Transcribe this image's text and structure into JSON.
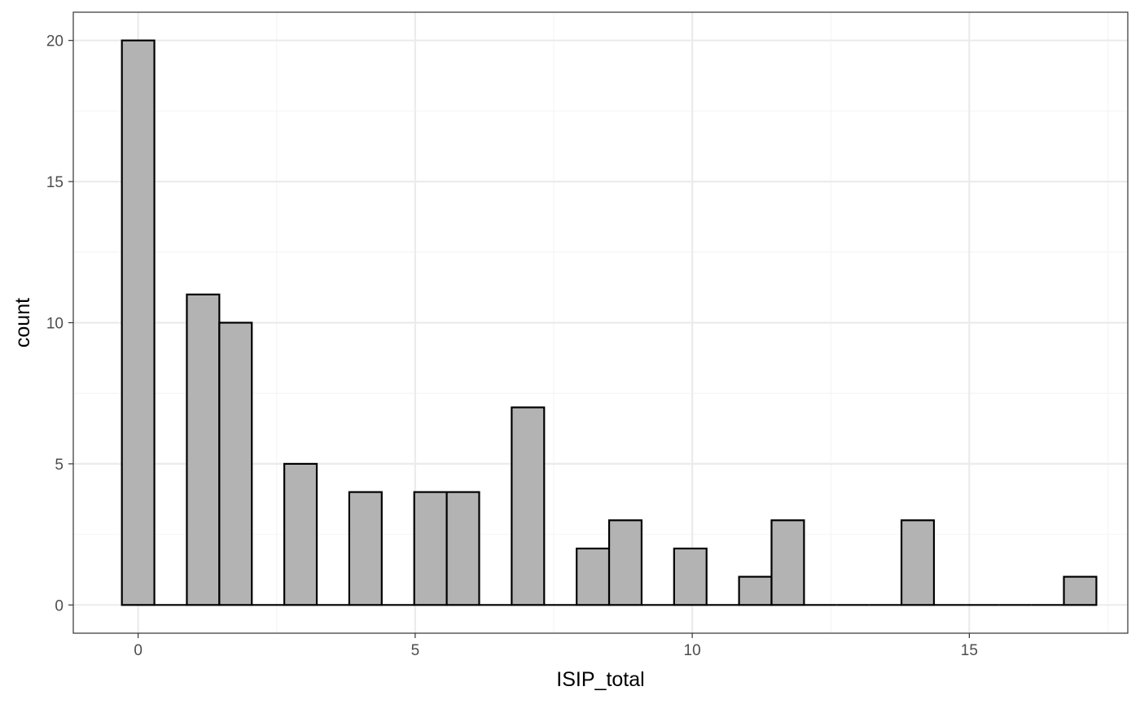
{
  "chart_data": {
    "type": "bar",
    "subtype": "histogram",
    "xlabel": "ISIP_total",
    "ylabel": "count",
    "xlim": [
      -1.17,
      17.86
    ],
    "ylim": [
      -1,
      21
    ],
    "x_ticks": [
      0,
      5,
      10,
      15
    ],
    "y_ticks": [
      0,
      5,
      10,
      15,
      20
    ],
    "x_minor_ticks": [
      2.5,
      7.5,
      12.5,
      17.5
    ],
    "y_minor_ticks": [
      2.5,
      7.5,
      12.5,
      17.5
    ],
    "grid": true,
    "legend": "none",
    "bin_width": 0.5862,
    "bin_centers": [
      0,
      0.5862,
      1.1724,
      1.7586,
      2.3448,
      2.931,
      3.5172,
      4.1034,
      4.6897,
      5.2759,
      5.8621,
      6.4483,
      7.0345,
      7.6207,
      8.2069,
      8.7931,
      9.3793,
      9.9655,
      10.5517,
      11.1379,
      11.7241,
      12.3103,
      12.8966,
      13.4828,
      14.069,
      14.6552,
      15.2414,
      15.8276,
      16.4138,
      17.0
    ],
    "values": [
      20,
      0,
      11,
      10,
      0,
      5,
      0,
      4,
      0,
      4,
      4,
      0,
      7,
      0,
      2,
      3,
      0,
      2,
      0,
      1,
      3,
      0,
      0,
      0,
      3,
      0,
      0,
      0,
      0,
      1
    ],
    "colors": {
      "bar_fill": "#b3b3b3",
      "bar_stroke": "#000000",
      "grid_major": "#ebebeb",
      "grid_minor": "#f4f4f4",
      "panel_border": "#333333"
    }
  }
}
